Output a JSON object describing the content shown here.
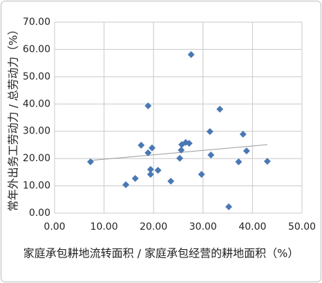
{
  "chart_data": {
    "type": "scatter",
    "x_label": "家庭承包耕地流转面积 / 家庭承包经营的耕地面积（%）",
    "y_label": "常年外出务工劳动力 / 总劳动力（%）",
    "series": [
      {
        "color": "#4a78b5",
        "x": [
          7.26,
          14.4,
          16.3,
          17.5,
          18.9,
          18.9,
          19.7,
          19.4,
          19.4,
          20.9,
          23.5,
          25.3,
          25.6,
          25.7,
          26.5,
          27.2,
          27.6,
          29.7,
          31.4,
          31.6,
          33.4,
          35.2,
          37.2,
          38.1,
          38.8,
          43.0
        ],
        "values": [
          18.8,
          10.4,
          12.7,
          24.9,
          39.3,
          22.1,
          23.9,
          16.0,
          14.2,
          15.7,
          11.7,
          20.1,
          23.1,
          25.1,
          25.9,
          25.6,
          58.1,
          14.2,
          29.9,
          21.3,
          38.1,
          2.3,
          18.8,
          28.9,
          22.8,
          19.0
        ]
      }
    ],
    "trendline": {
      "color": "#999999",
      "x": [
        7.26,
        43.0
      ],
      "values": [
        19.3,
        25.1
      ]
    },
    "xlim": [
      0,
      50
    ],
    "xticks": [
      {
        "value": 0,
        "label": "0.00"
      },
      {
        "value": 10,
        "label": "10.00"
      },
      {
        "value": 20,
        "label": "20.00"
      },
      {
        "value": 30,
        "label": "30.00"
      },
      {
        "value": 40,
        "label": "40.00"
      },
      {
        "value": 50,
        "label": "50.00"
      }
    ],
    "ylim": [
      0,
      70
    ],
    "yticks": [
      {
        "value": 0,
        "label": "0.00"
      },
      {
        "value": 10,
        "label": "10.00"
      },
      {
        "value": 20,
        "label": "20.00"
      },
      {
        "value": 30,
        "label": "30.00"
      },
      {
        "value": 40,
        "label": "40.00"
      },
      {
        "value": 50,
        "label": "50.00"
      },
      {
        "value": 60,
        "label": "60.00"
      },
      {
        "value": 70,
        "label": "70.00"
      }
    ],
    "grid": true
  }
}
